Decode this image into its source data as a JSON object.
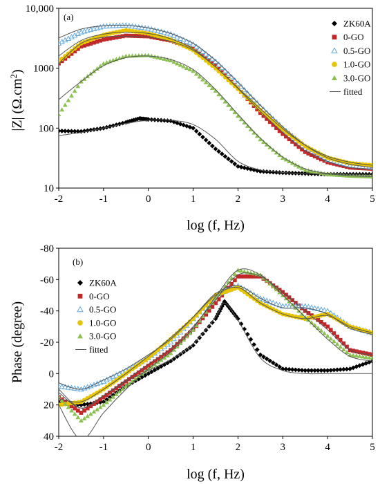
{
  "colors": {
    "ZK60A": "#000000",
    "0-GO": "#c0282a",
    "0.5-GO": "#62a8de",
    "1.0-GO": "#e7c400",
    "3.0-GO": "#8cc152",
    "fitted": "#555555"
  },
  "chart_data": [
    {
      "type": "scatter",
      "panel_label": "(a)",
      "xlabel": "log (f, Hz)",
      "ylabel_main": "|Z| (Ω.cm",
      "ylabel_sup": "2",
      "ylabel_end": ")",
      "yscale": "log",
      "xlim": [
        -2,
        5
      ],
      "ylim": [
        10,
        10000
      ],
      "xticks": [
        "-2",
        "-1",
        "0",
        "1",
        "2",
        "3",
        "4",
        "5"
      ],
      "yticks": [
        {
          "value": 10,
          "label": "10"
        },
        {
          "value": 100,
          "label": "100"
        },
        {
          "value": 1000,
          "label": "1000"
        },
        {
          "value": 10000,
          "label": "10,000"
        }
      ],
      "legend": {
        "position": "right",
        "entries": [
          "ZK60A",
          "0-GO",
          "0.5-GO",
          "1.0-GO",
          "3.0-GO",
          "fitted"
        ]
      },
      "series": [
        {
          "name": "ZK60A",
          "marker": "diamond",
          "x": [
            -2,
            -1.5,
            -1,
            -0.5,
            -0.2,
            0,
            0.5,
            1,
            1.5,
            2,
            2.5,
            3,
            3.5,
            4,
            4.5,
            5
          ],
          "y": [
            90,
            88,
            100,
            125,
            145,
            140,
            132,
            100,
            45,
            23,
            19,
            18,
            17.5,
            17,
            17,
            17
          ]
        },
        {
          "name": "0-GO",
          "marker": "square",
          "x": [
            -2,
            -1.5,
            -1,
            -0.5,
            0,
            0.5,
            1,
            1.5,
            2,
            2.5,
            3,
            3.5,
            4,
            4.5,
            5
          ],
          "y": [
            1200,
            2300,
            3000,
            3500,
            3400,
            2900,
            2100,
            1100,
            460,
            180,
            80,
            40,
            27,
            22,
            21
          ]
        },
        {
          "name": "0.5-GO",
          "marker": "triangle-open",
          "x": [
            -2,
            -1.5,
            -1,
            -0.5,
            0,
            0.5,
            1,
            1.5,
            2,
            2.5,
            3,
            3.5,
            4,
            4.5,
            5
          ],
          "y": [
            2600,
            4000,
            5000,
            5200,
            4600,
            3700,
            2500,
            1300,
            560,
            230,
            100,
            50,
            30,
            24,
            22
          ]
        },
        {
          "name": "1.0-GO",
          "marker": "circle",
          "x": [
            -2,
            -1.5,
            -1,
            -0.5,
            0,
            0.5,
            1,
            1.5,
            2,
            2.5,
            3,
            3.5,
            4,
            4.5,
            5
          ],
          "y": [
            1300,
            2600,
            3600,
            4300,
            3800,
            3000,
            2000,
            1000,
            450,
            200,
            95,
            50,
            32,
            26,
            24
          ]
        },
        {
          "name": "3.0-GO",
          "marker": "triangle",
          "x": [
            -2,
            -1.5,
            -1,
            -0.5,
            0,
            0.5,
            1,
            1.5,
            2,
            2.5,
            3,
            3.5,
            4,
            4.5,
            5
          ],
          "y": [
            170,
            600,
            1200,
            1600,
            1650,
            1350,
            900,
            420,
            160,
            65,
            32,
            20,
            17,
            16,
            15.5
          ]
        }
      ],
      "fits": [
        {
          "name": "0-GO",
          "x": [
            -2,
            -1.5,
            -1,
            -0.5,
            0,
            0.5,
            1,
            1.5,
            2,
            2.5,
            3,
            3.5,
            4,
            4.5,
            5
          ],
          "y": [
            1200,
            2600,
            3300,
            3400,
            3300,
            2800,
            2000,
            1050,
            460,
            190,
            85,
            42,
            28,
            22,
            21
          ]
        },
        {
          "name": "0.5-GO",
          "x": [
            -2,
            -1.5,
            -1,
            -0.5,
            0,
            0.5,
            1,
            1.5,
            2,
            2.5,
            3,
            3.5,
            4,
            4.5,
            5
          ],
          "y": [
            3200,
            4500,
            5100,
            5200,
            4700,
            3800,
            2600,
            1350,
            580,
            240,
            105,
            52,
            32,
            25,
            22
          ]
        },
        {
          "name": "1.0-GO",
          "x": [
            -2,
            -1.5,
            -1,
            -0.5,
            0,
            0.5,
            1,
            1.5,
            2,
            2.5,
            3,
            3.5,
            4,
            4.5,
            5
          ],
          "y": [
            1600,
            2900,
            3700,
            4000,
            3800,
            3100,
            2100,
            1050,
            470,
            210,
            98,
            52,
            34,
            27,
            24
          ]
        },
        {
          "name": "3.0-GO",
          "x": [
            -2,
            -1.5,
            -1,
            -0.5,
            0,
            0.5,
            1,
            1.5,
            2,
            2.5,
            3,
            3.5,
            4,
            4.5,
            5
          ],
          "y": [
            300,
            600,
            1100,
            1500,
            1600,
            1400,
            950,
            440,
            170,
            68,
            33,
            21,
            17.5,
            16,
            15.5
          ]
        },
        {
          "name": "ZK60A",
          "x": [
            -2,
            -1.5,
            -1,
            -0.5,
            0,
            0.5,
            1,
            1.5,
            2,
            2.5,
            3,
            3.5,
            4,
            4.5,
            5
          ],
          "y": [
            75,
            85,
            100,
            120,
            135,
            135,
            115,
            65,
            28,
            20,
            18.2,
            17.5,
            17.2,
            17,
            17
          ]
        }
      ]
    },
    {
      "type": "scatter",
      "panel_label": "(b)",
      "xlabel": "log (f, Hz)",
      "ylabel": "Phase (degree)",
      "xlim": [
        -2,
        5
      ],
      "ylim": [
        40,
        -80
      ],
      "xticks": [
        "-2",
        "-1",
        "0",
        "1",
        "2",
        "3",
        "4",
        "5"
      ],
      "yticks": [
        {
          "value": -80,
          "label": "-80"
        },
        {
          "value": -60,
          "label": "-60"
        },
        {
          "value": -40,
          "label": "-40"
        },
        {
          "value": -20,
          "label": "-20"
        },
        {
          "value": 0,
          "label": "0"
        },
        {
          "value": 20,
          "label": "20"
        },
        {
          "value": 40,
          "label": "40"
        }
      ],
      "legend": {
        "position": "left",
        "entries": [
          "ZK60A",
          "0-GO",
          "0.5-GO",
          "1.0-GO",
          "3.0-GO",
          "fitted"
        ]
      },
      "series": [
        {
          "name": "ZK60A",
          "marker": "diamond",
          "x": [
            -2,
            -1.5,
            -1,
            -0.5,
            0,
            0.5,
            1,
            1.5,
            1.7,
            2,
            2.5,
            3,
            3.5,
            4,
            4.5,
            5
          ],
          "y": [
            18,
            20,
            18,
            8,
            0,
            -8,
            -18,
            -35,
            -46,
            -35,
            -12,
            -3,
            -2,
            -2,
            -3,
            -8
          ]
        },
        {
          "name": "0-GO",
          "marker": "square",
          "x": [
            -2,
            -1.5,
            -1,
            -0.5,
            0,
            0.5,
            1,
            1.5,
            2,
            2.5,
            3,
            3.5,
            4,
            4.5,
            5
          ],
          "y": [
            15,
            25,
            15,
            5,
            -5,
            -15,
            -28,
            -45,
            -62,
            -62,
            -52,
            -40,
            -30,
            -15,
            -12
          ]
        },
        {
          "name": "0.5-GO",
          "marker": "triangle-open",
          "x": [
            -2,
            -1.5,
            -1,
            -0.5,
            0,
            0.5,
            1,
            1.5,
            2,
            2.5,
            3,
            3.5,
            4,
            4.5,
            5
          ],
          "y": [
            8,
            10,
            5,
            -2,
            -10,
            -20,
            -35,
            -50,
            -56,
            -48,
            -43,
            -43,
            -40,
            -30,
            -26
          ]
        },
        {
          "name": "1.0-GO",
          "marker": "circle",
          "x": [
            -2,
            -1.5,
            -1,
            -0.5,
            0,
            0.5,
            1,
            1.5,
            2,
            2.5,
            3,
            3.5,
            4,
            4.5,
            5
          ],
          "y": [
            20,
            18,
            10,
            0,
            -10,
            -22,
            -35,
            -50,
            -55,
            -45,
            -38,
            -35,
            -38,
            -30,
            -26
          ]
        },
        {
          "name": "3.0-GO",
          "marker": "triangle",
          "x": [
            -2,
            -1.5,
            -1,
            -0.5,
            0,
            0.5,
            1,
            1.5,
            2,
            2.5,
            3,
            3.5,
            4,
            4.5,
            5
          ],
          "y": [
            15,
            30,
            20,
            8,
            -3,
            -13,
            -28,
            -48,
            -66,
            -63,
            -50,
            -36,
            -24,
            -12,
            -10
          ]
        }
      ],
      "fits": [
        {
          "name": "ZK60A",
          "x": [
            -2,
            -1.5,
            -1,
            -0.5,
            0,
            0.5,
            1,
            1.5,
            1.7,
            2,
            2.5,
            3,
            3.5,
            4,
            4.5,
            5
          ],
          "y": [
            12,
            22,
            14,
            5,
            -2,
            -9,
            -19,
            -36,
            -45,
            -34,
            -10,
            -2,
            0,
            0,
            0,
            0
          ]
        },
        {
          "name": "0-GO",
          "x": [
            -2,
            -1.5,
            -1,
            -0.5,
            0,
            0.5,
            1,
            1.5,
            2,
            2.5,
            3,
            3.5,
            4,
            4.5,
            5
          ],
          "y": [
            10,
            22,
            14,
            4,
            -6,
            -16,
            -30,
            -47,
            -63,
            -62,
            -52,
            -40,
            -28,
            -15,
            -12
          ]
        },
        {
          "name": "0.5-GO",
          "x": [
            -2,
            -1.5,
            -1,
            -0.5,
            0,
            0.5,
            1,
            1.5,
            2,
            2.5,
            3,
            3.5,
            4,
            4.5,
            5
          ],
          "y": [
            6,
            10,
            4,
            -3,
            -12,
            -22,
            -36,
            -51,
            -56,
            -48,
            -42,
            -42,
            -38,
            -29,
            -25
          ]
        },
        {
          "name": "1.0-GO",
          "x": [
            -2,
            -1.5,
            -1,
            -0.5,
            0,
            0.5,
            1,
            1.5,
            2,
            2.5,
            3,
            3.5,
            4,
            4.5,
            5
          ],
          "y": [
            16,
            18,
            10,
            0,
            -11,
            -23,
            -36,
            -50,
            -55,
            -45,
            -38,
            -35,
            -37,
            -30,
            -26
          ]
        },
        {
          "name": "3.0-GO",
          "x": [
            -2,
            -1.5,
            -1,
            -0.5,
            0,
            0.5,
            1,
            1.5,
            2,
            2.5,
            3,
            3.5,
            4,
            4.5,
            5
          ],
          "y": [
            20,
            42,
            25,
            10,
            -3,
            -14,
            -29,
            -49,
            -66,
            -63,
            -50,
            -36,
            -22,
            -11,
            -8
          ]
        }
      ]
    }
  ]
}
